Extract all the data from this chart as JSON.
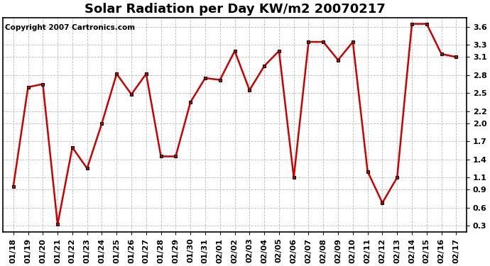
{
  "title": "Solar Radiation per Day KW/m2 20070217",
  "copyright": "Copyright 2007 Cartronics.com",
  "dates": [
    "01/18",
    "01/19",
    "01/20",
    "01/21",
    "01/22",
    "01/23",
    "01/24",
    "01/25",
    "01/26",
    "01/27",
    "01/28",
    "01/29",
    "01/30",
    "01/31",
    "02/01",
    "02/02",
    "02/03",
    "02/04",
    "02/05",
    "02/06",
    "02/07",
    "02/08",
    "02/09",
    "02/10",
    "02/11",
    "02/12",
    "02/13",
    "02/14",
    "02/15",
    "02/16",
    "02/17"
  ],
  "values": [
    0.95,
    2.6,
    2.65,
    0.32,
    1.6,
    1.25,
    2.0,
    2.82,
    2.48,
    2.82,
    1.45,
    1.45,
    2.35,
    2.75,
    2.72,
    3.2,
    2.55,
    2.95,
    3.2,
    1.1,
    3.35,
    3.35,
    3.05,
    3.35,
    1.2,
    0.68,
    1.1,
    3.65,
    3.65,
    3.15,
    3.1
  ],
  "line_color": "#cc0000",
  "marker_color": "#cc0000",
  "marker_edge_color": "#000000",
  "bg_color": "#ffffff",
  "grid_color": "#bbbbbb",
  "ylim": [
    0.2,
    3.75
  ],
  "yticks": [
    0.3,
    0.6,
    0.9,
    1.1,
    1.4,
    1.7,
    2.0,
    2.2,
    2.5,
    2.8,
    3.1,
    3.3,
    3.6
  ],
  "title_fontsize": 13,
  "tick_fontsize": 8,
  "copyright_fontsize": 7.5
}
